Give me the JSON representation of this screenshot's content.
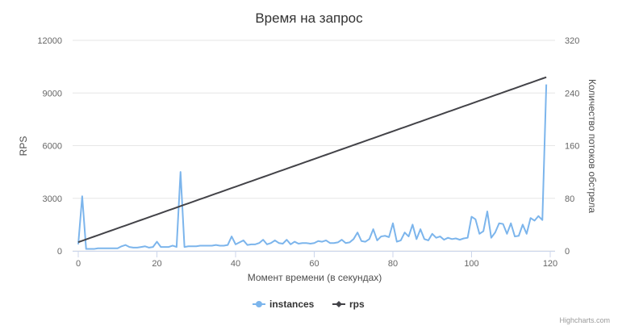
{
  "chart_data": {
    "type": "line",
    "title": "Время на запрос",
    "x_label": "Момент времени (в секундах)",
    "y_label": "RPS",
    "y2_label": "Количество потоков обстрела",
    "credits": "Highcharts.com",
    "x": [
      0,
      1,
      2,
      3,
      4,
      5,
      6,
      7,
      8,
      9,
      10,
      11,
      12,
      13,
      14,
      15,
      16,
      17,
      18,
      19,
      20,
      21,
      22,
      23,
      24,
      25,
      26,
      27,
      28,
      29,
      30,
      31,
      32,
      33,
      34,
      35,
      36,
      37,
      38,
      39,
      40,
      41,
      42,
      43,
      44,
      45,
      46,
      47,
      48,
      49,
      50,
      51,
      52,
      53,
      54,
      55,
      56,
      57,
      58,
      59,
      60,
      61,
      62,
      63,
      64,
      65,
      66,
      67,
      68,
      69,
      70,
      71,
      72,
      73,
      74,
      75,
      76,
      77,
      78,
      79,
      80,
      81,
      82,
      83,
      84,
      85,
      86,
      87,
      88,
      89,
      90,
      91,
      92,
      93,
      94,
      95,
      96,
      97,
      98,
      99,
      100,
      101,
      102,
      103,
      104,
      105,
      106,
      107,
      108,
      109,
      110,
      111,
      112,
      113,
      114,
      115,
      116,
      117,
      118,
      119
    ],
    "xlim": [
      0,
      120
    ],
    "xticks": [
      0,
      20,
      40,
      60,
      80,
      100,
      120
    ],
    "ylim": [
      0,
      12000
    ],
    "yticks": [
      0,
      3000,
      6000,
      9000,
      12000
    ],
    "y2lim": [
      0,
      320
    ],
    "y2ticks": [
      0,
      80,
      160,
      240,
      320
    ],
    "grid": true,
    "series": [
      {
        "name": "instances",
        "color": "#7cb5ec",
        "axis": "y2",
        "marker": "circle",
        "values": [
          10,
          83,
          3,
          3,
          3,
          4,
          4,
          4,
          4,
          4,
          4,
          7,
          9,
          6,
          5,
          5,
          6,
          7,
          5,
          6,
          14,
          6,
          6,
          6,
          8,
          6,
          120,
          6,
          7,
          7,
          7,
          8,
          8,
          8,
          8,
          9,
          8,
          8,
          9,
          22,
          10,
          13,
          16,
          9,
          10,
          10,
          12,
          17,
          10,
          12,
          16,
          12,
          11,
          17,
          10,
          14,
          11,
          12,
          12,
          11,
          12,
          15,
          14,
          16,
          12,
          12,
          13,
          17,
          12,
          13,
          18,
          28,
          15,
          14,
          18,
          33,
          16,
          22,
          23,
          21,
          42,
          14,
          16,
          28,
          22,
          40,
          18,
          33,
          18,
          16,
          26,
          20,
          22,
          17,
          20,
          18,
          19,
          17,
          19,
          20,
          52,
          48,
          26,
          30,
          60,
          20,
          28,
          42,
          41,
          26,
          42,
          22,
          23,
          40,
          26,
          50,
          46,
          53,
          47,
          253
        ]
      },
      {
        "name": "rps",
        "color": "#434348",
        "axis": "y",
        "marker": "diamond",
        "values": [
          500,
          579,
          658,
          737,
          816,
          895,
          974,
          1053,
          1132,
          1211,
          1290,
          1369,
          1448,
          1527,
          1606,
          1685,
          1764,
          1843,
          1922,
          2001,
          2080,
          2159,
          2238,
          2317,
          2396,
          2475,
          2554,
          2633,
          2712,
          2791,
          2870,
          2949,
          3028,
          3107,
          3186,
          3265,
          3344,
          3423,
          3502,
          3581,
          3660,
          3739,
          3818,
          3897,
          3976,
          4055,
          4134,
          4213,
          4292,
          4371,
          4450,
          4529,
          4608,
          4687,
          4766,
          4845,
          4924,
          5003,
          5082,
          5161,
          5240,
          5319,
          5398,
          5477,
          5556,
          5635,
          5714,
          5793,
          5872,
          5951,
          6030,
          6109,
          6188,
          6267,
          6346,
          6425,
          6504,
          6583,
          6662,
          6741,
          6820,
          6899,
          6978,
          7057,
          7136,
          7215,
          7294,
          7373,
          7452,
          7531,
          7610,
          7689,
          7768,
          7847,
          7926,
          8005,
          8084,
          8163,
          8242,
          8321,
          8400,
          8479,
          8558,
          8637,
          8716,
          8795,
          8874,
          8953,
          9032,
          9111,
          9190,
          9269,
          9348,
          9427,
          9506,
          9585,
          9664,
          9743,
          9822,
          9901
        ]
      }
    ]
  }
}
